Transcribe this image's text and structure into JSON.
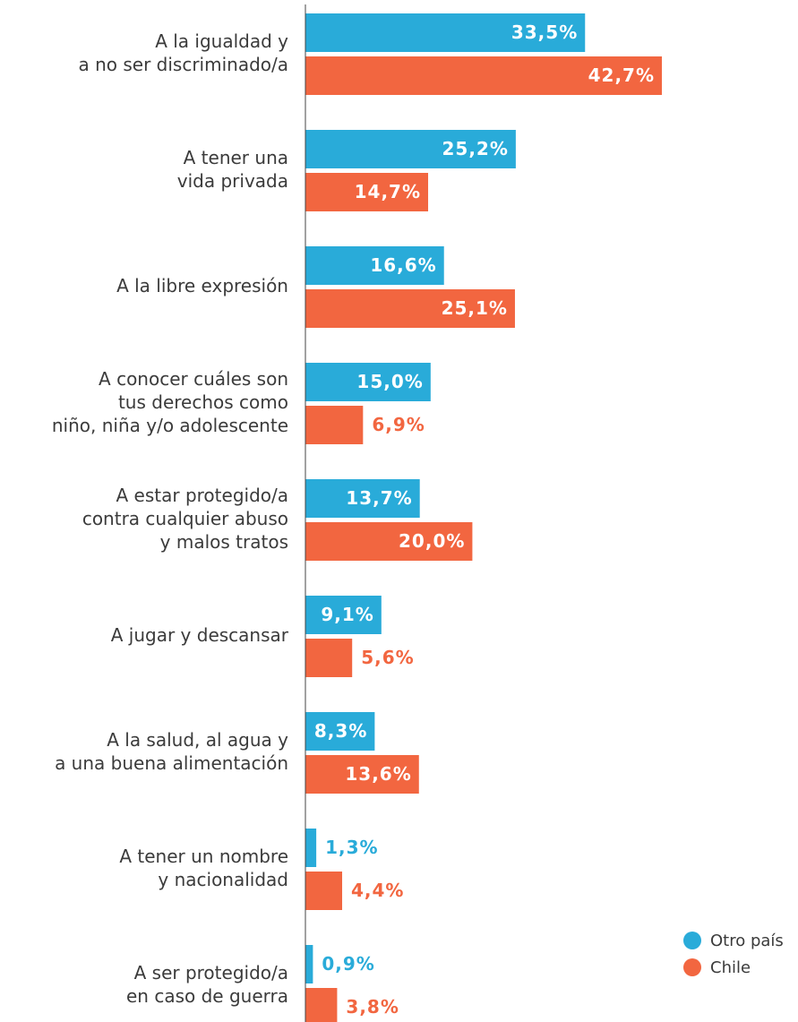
{
  "chart_data": {
    "type": "bar",
    "orientation": "horizontal",
    "categories": [
      "A la igualdad y\na no ser discriminado/a",
      "A tener una\nvida privada",
      "A la libre expresión",
      "A conocer cuáles son\ntus derechos como\nniño, niña y/o adolescente",
      "A estar protegido/a\ncontra cualquier abuso\ny malos tratos",
      "A jugar y descansar",
      "A la salud, al agua y\na una buena alimentación",
      "A tener un nombre\ny nacionalidad",
      "A ser protegido/a\nen caso de guerra"
    ],
    "series": [
      {
        "name": "Otro país",
        "color": "#29ABD9",
        "values": [
          33.5,
          25.2,
          16.6,
          15.0,
          13.7,
          9.1,
          8.3,
          1.3,
          0.9
        ],
        "labels": [
          "33,5%",
          "25,2%",
          "16,6%",
          "15,0%",
          "13,7%",
          "9,1%",
          "8,3%",
          "1,3%",
          "0,9%"
        ]
      },
      {
        "name": "Chile",
        "color": "#F26640",
        "values": [
          42.7,
          14.7,
          25.1,
          6.9,
          20.0,
          5.6,
          13.6,
          4.4,
          3.8
        ],
        "labels": [
          "42,7%",
          "14,7%",
          "25,1%",
          "6,9%",
          "20,0%",
          "5,6%",
          "13,6%",
          "4,4%",
          "3,8%"
        ]
      }
    ],
    "xlim": [
      0,
      42.7
    ],
    "title": "",
    "xlabel": "",
    "ylabel": "",
    "legend_position": "bottom-right",
    "grid": false
  }
}
